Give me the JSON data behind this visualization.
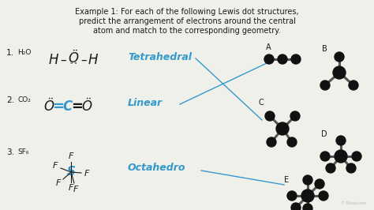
{
  "bg_color": "#f0f0eb",
  "title_line1": "Example 1: For each of the following Lewis dot structures,",
  "title_line2": "predict the arrangement of electrons around the central",
  "title_line3": "atom and match to the corresponding geometry.",
  "items": [
    {
      "num": "1.",
      "formula": "H₂O",
      "geometry": "Tetrahedral",
      "label_end": "C"
    },
    {
      "num": "2.",
      "formula": "CO₂",
      "geometry": "Linear",
      "label_end": "A"
    },
    {
      "num": "3.",
      "formula": "SF₆",
      "geometry": "Octahedro",
      "label_end": "E"
    }
  ],
  "molecule_labels": [
    "A",
    "B",
    "C",
    "D",
    "E"
  ],
  "handwriting_color": "#3399cc",
  "black": "#1a1a1a",
  "bond_color": "#555555",
  "ball_color": "#111111"
}
